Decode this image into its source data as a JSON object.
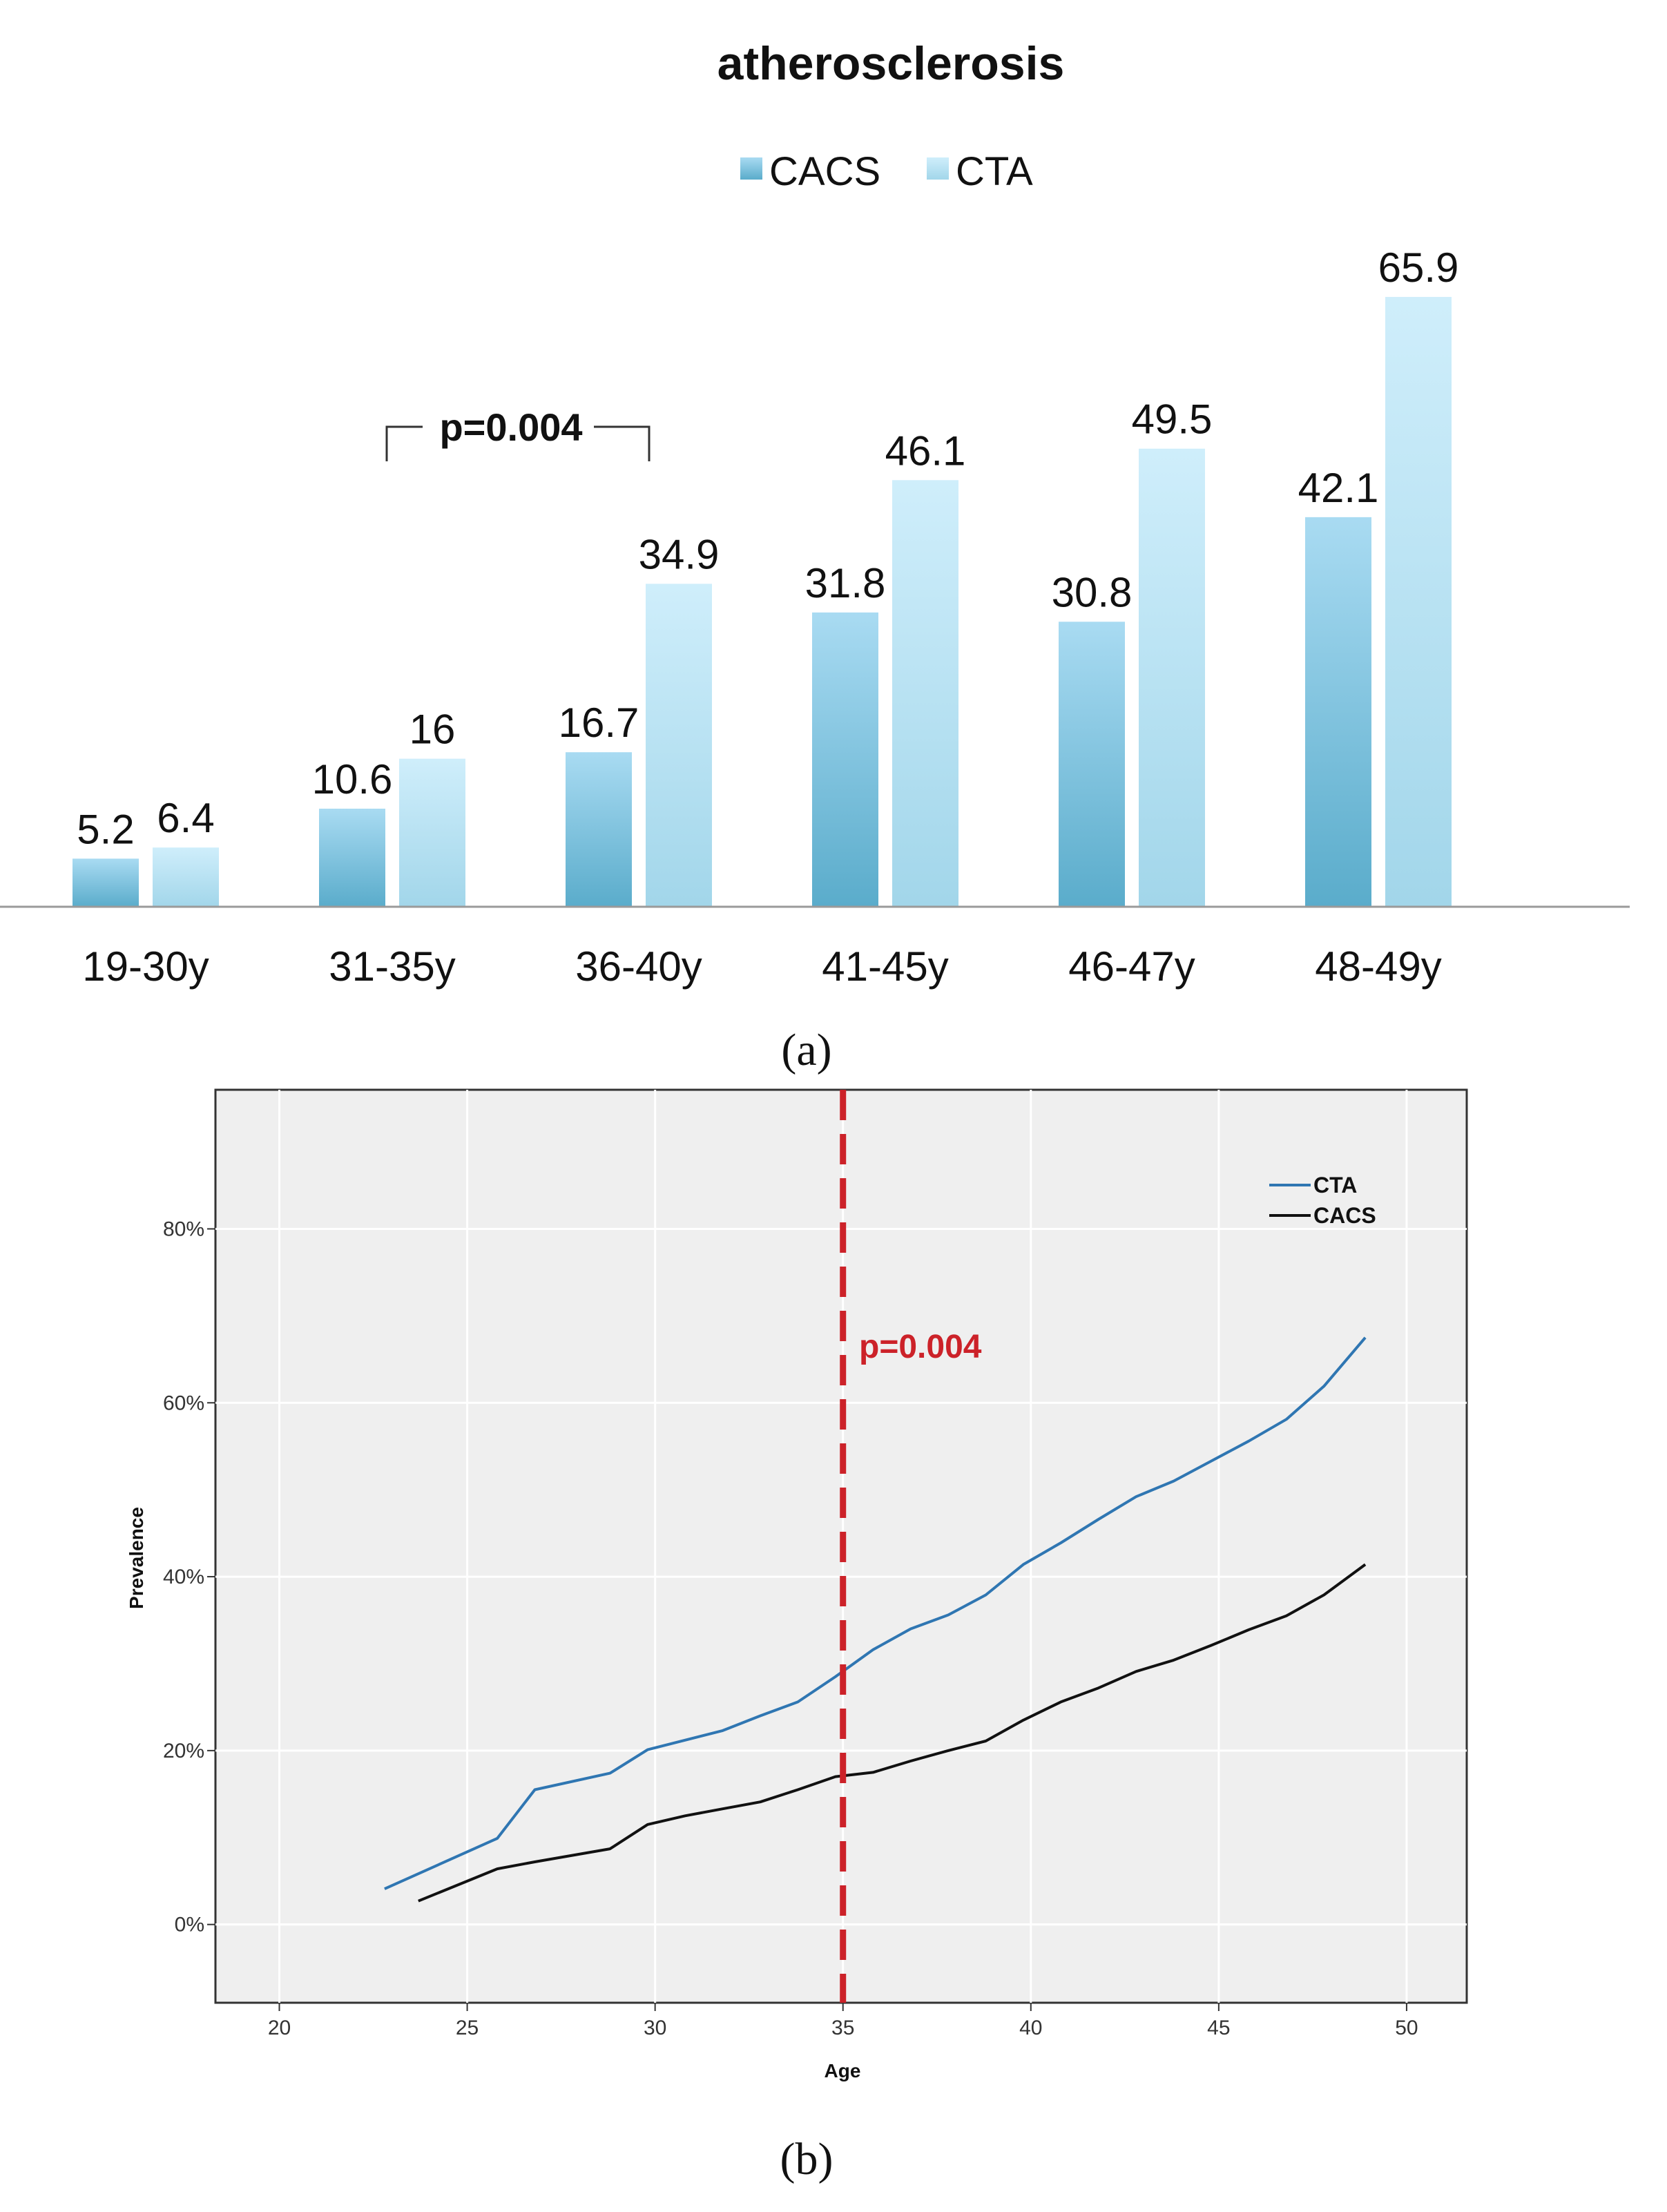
{
  "chart_data": [
    {
      "type": "bar",
      "title": "atherosclerosis",
      "categories": [
        "19-30y",
        "31-35y",
        "36-40y",
        "41-45y",
        "46-47y",
        "48-49y"
      ],
      "series": [
        {
          "name": "CACS",
          "values": [
            5.2,
            10.6,
            16.7,
            31.8,
            30.8,
            42.1
          ],
          "labels": [
            "5.2",
            "10.6",
            "16.7",
            "31.8",
            "30.8",
            "42.1"
          ]
        },
        {
          "name": "CTA",
          "values": [
            6.4,
            16,
            34.9,
            46.1,
            49.5,
            65.9
          ],
          "labels": [
            "6.4",
            "16",
            "34.9",
            "46.1",
            "49.5",
            "65.9"
          ]
        }
      ],
      "ylim": [
        0,
        70
      ],
      "annotation": "p=0.004",
      "panel_label": "(a)"
    },
    {
      "type": "line",
      "xlabel": "Age",
      "ylabel": "Prevalence",
      "xlim": [
        18.3,
        51.6
      ],
      "ylim": [
        -9,
        96
      ],
      "xticks": [
        20,
        25,
        30,
        35,
        40,
        45,
        50
      ],
      "xtick_labels": [
        "20",
        "25",
        "30",
        "35",
        "40",
        "45",
        "50"
      ],
      "yticks": [
        0,
        20,
        40,
        60,
        80
      ],
      "ytick_labels": [
        "0%",
        "20%",
        "40%",
        "60%",
        "80%"
      ],
      "series": [
        {
          "name": "CTA",
          "color": "#2f76b2",
          "x": [
            22.8,
            25.8,
            26.8,
            28.8,
            29.8,
            31.8,
            32.8,
            33.8,
            34.8,
            35.8,
            36.8,
            37.8,
            38.8,
            39.8,
            40.8,
            41.8,
            42.8,
            43.8,
            44.8,
            45.8,
            46.8,
            47.8,
            48.9
          ],
          "y": [
            4.1,
            9.9,
            15.5,
            17.4,
            20.1,
            22.3,
            24.0,
            25.6,
            28.5,
            31.6,
            34.0,
            35.6,
            37.9,
            41.4,
            43.9,
            46.6,
            49.2,
            51.0,
            53.3,
            55.6,
            58.1,
            61.9,
            67.5
          ]
        },
        {
          "name": "CACS",
          "color": "#111111",
          "x": [
            23.7,
            25.8,
            26.8,
            28.8,
            29.8,
            30.8,
            31.8,
            32.8,
            33.8,
            34.8,
            35.8,
            36.8,
            37.8,
            38.8,
            39.8,
            40.8,
            41.8,
            42.8,
            43.8,
            44.8,
            45.8,
            46.8,
            47.8,
            48.9
          ],
          "y": [
            2.7,
            6.4,
            7.2,
            8.7,
            11.5,
            12.5,
            13.3,
            14.1,
            15.5,
            17.0,
            17.5,
            18.8,
            20.0,
            21.1,
            23.5,
            25.6,
            27.2,
            29.1,
            30.4,
            32.1,
            33.9,
            35.5,
            37.9,
            41.4
          ]
        }
      ],
      "vline": {
        "x": 35,
        "color": "#cc2229",
        "label": "p=0.004"
      },
      "legend_position": "top-right",
      "panel_label": "(b)"
    }
  ]
}
